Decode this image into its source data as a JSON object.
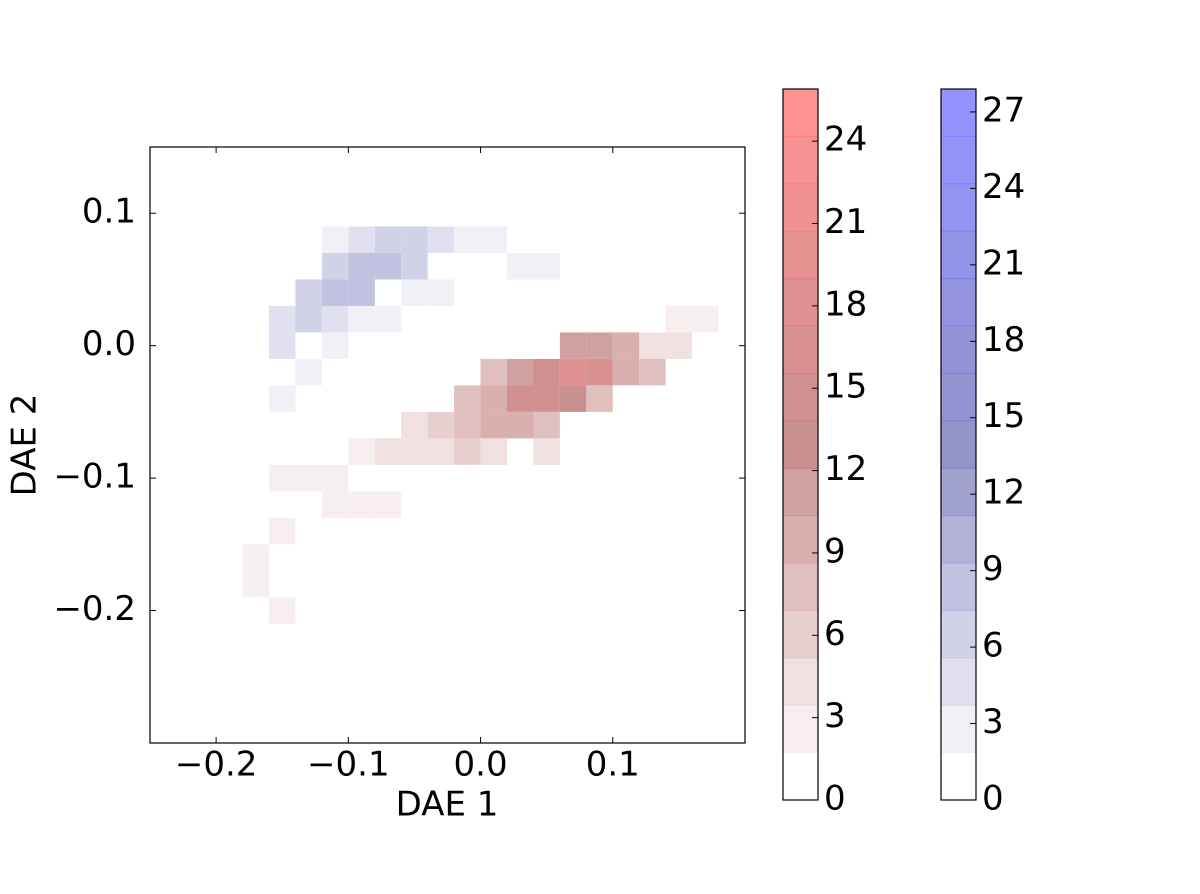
{
  "chart_data": {
    "type": "hist2d",
    "xlabel": "DAE 1",
    "ylabel": "DAE 2",
    "xlim": [
      -0.25,
      0.2
    ],
    "ylim": [
      -0.3,
      0.15
    ],
    "xticks": [
      {
        "value": -0.2,
        "label": "−0.2"
      },
      {
        "value": -0.1,
        "label": "−0.1"
      },
      {
        "value": 0,
        "label": "0.0"
      },
      0.1
    ],
    "yticks": [
      {
        "value": -0.2,
        "label": "−0.2"
      },
      {
        "value": -0.1,
        "label": "−0.1"
      },
      {
        "value": 0,
        "label": "0.0"
      },
      0.1
    ],
    "bin_size": 0.02,
    "n_levels": 15,
    "series": [
      {
        "colors": [
          "#ffffff",
          "#8080c0",
          "#8080ff"
        ],
        "clim": [
          0,
          27.9
        ],
        "cticks": [
          0,
          3,
          6,
          9,
          12,
          15,
          18,
          21,
          24,
          27
        ],
        "x": [
          -0.15,
          -0.15,
          -0.13,
          -0.13,
          -0.11,
          -0.11,
          -0.09,
          -0.09,
          -0.07,
          -0.07,
          -0.05,
          -0.05,
          -0.03,
          -0.01,
          0.01,
          0.03,
          0.05,
          0.07,
          0.09,
          -0.11,
          -0.09,
          -0.17,
          -0.15,
          -0.13,
          -0.11,
          -0.19,
          -0.17,
          -0.07,
          -0.05,
          -0.03,
          -0.09,
          -0.11
        ],
        "y": [
          0,
          0.02,
          0.02,
          0.04,
          0.04,
          0.06,
          0.04,
          0.06,
          0.06,
          0.08,
          0.06,
          0.08,
          0.08,
          0.08,
          0.08,
          0.06,
          0.06,
          0.04,
          0.04,
          0.02,
          0.02,
          -0.04,
          -0.04,
          -0.02,
          0,
          -0.1,
          -0.12,
          0.02,
          0.04,
          0.04,
          0.08,
          0.08
        ],
        "values": [
          4,
          5,
          7,
          6,
          8,
          6,
          8,
          9,
          9,
          7,
          7,
          6,
          4,
          3,
          2,
          2,
          2,
          1,
          1,
          4,
          3,
          1,
          2,
          3,
          3,
          1,
          1,
          3,
          3,
          2,
          4,
          2
        ]
      },
      {
        "colors": [
          "#ffffff",
          "#c07c7c",
          "#ff8080"
        ],
        "clim": [
          0,
          25.9
        ],
        "cticks": [
          0,
          3,
          6,
          9,
          12,
          15,
          18,
          21,
          24
        ],
        "x": [
          0.05,
          0.07,
          0.09,
          0.07,
          0.09,
          0.11,
          0.03,
          0.03,
          0.05,
          0.07,
          0.01,
          0.01,
          -0.01,
          -0.01,
          0.01,
          0.03,
          0.05,
          0.11,
          0.13,
          0.13,
          0.15,
          0.17,
          0.15,
          0.09,
          -0.03,
          -0.05,
          -0.03,
          -0.05,
          -0.07,
          -0.09,
          -0.11,
          -0.13,
          -0.15,
          -0.09,
          -0.07,
          -0.11,
          -0.15,
          -0.17,
          -0.17,
          -0.15,
          -0.13,
          0.05,
          0.01,
          -0.01
        ],
        "y": [
          -0.02,
          -0.02,
          -0.02,
          0,
          0,
          0,
          -0.02,
          -0.04,
          -0.04,
          -0.04,
          -0.02,
          -0.04,
          -0.04,
          -0.06,
          -0.06,
          -0.06,
          -0.06,
          -0.02,
          -0.02,
          0,
          0,
          0.02,
          0.02,
          -0.04,
          -0.06,
          -0.06,
          -0.08,
          -0.08,
          -0.08,
          -0.08,
          -0.1,
          -0.1,
          -0.1,
          -0.12,
          -0.12,
          -0.12,
          -0.14,
          -0.16,
          -0.18,
          -0.2,
          -0.22,
          -0.08,
          -0.08,
          -0.08
        ],
        "values": [
          14,
          18,
          16,
          12,
          12,
          9,
          12,
          14,
          15,
          13,
          8,
          10,
          7,
          8,
          9,
          10,
          8,
          10,
          7,
          5,
          4,
          2,
          3,
          8,
          6,
          5,
          5,
          4,
          4,
          3,
          3,
          3,
          2,
          3,
          2,
          2,
          2,
          2,
          3,
          2,
          1,
          4,
          5,
          6
        ]
      }
    ]
  }
}
